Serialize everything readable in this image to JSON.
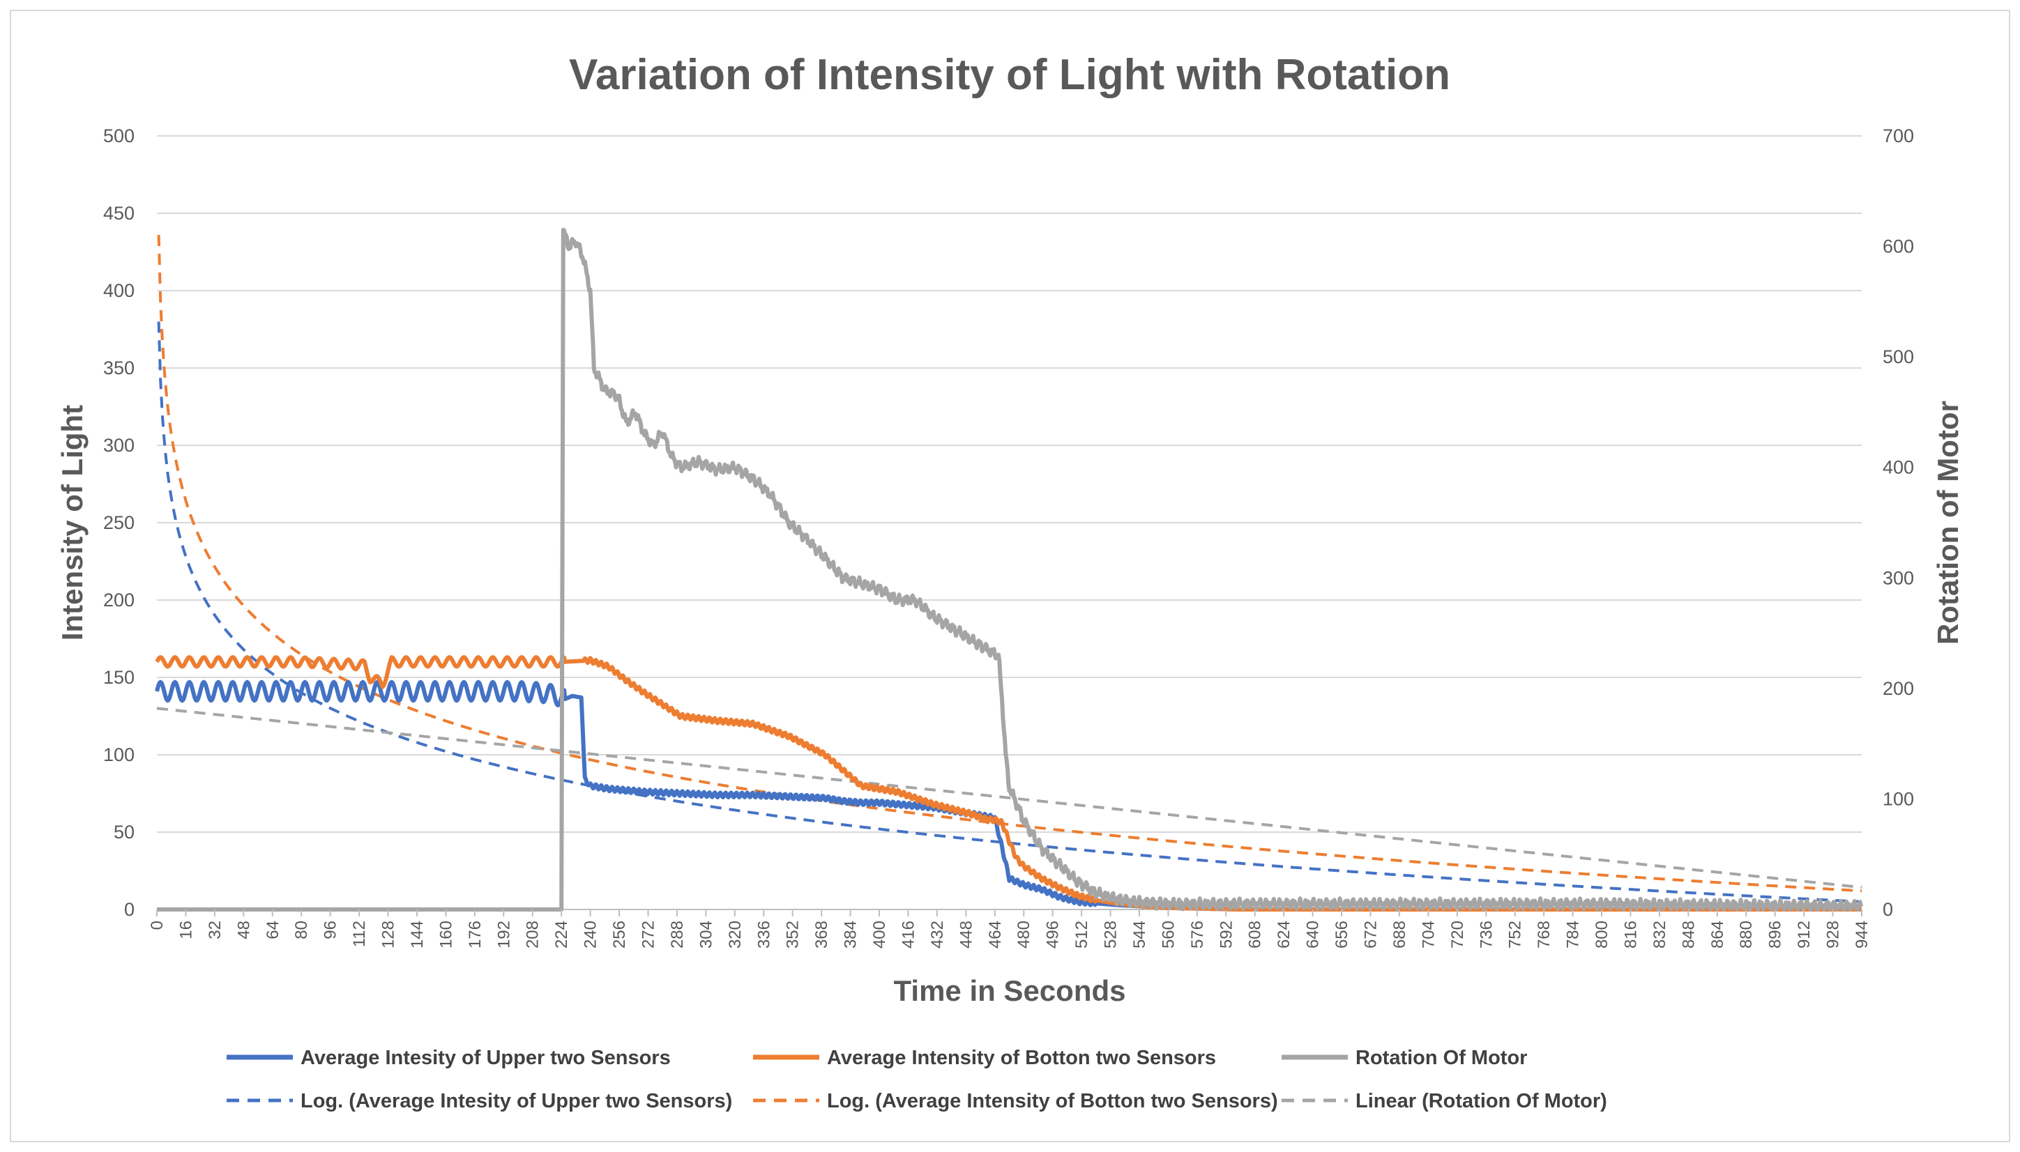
{
  "chart_data": {
    "type": "line",
    "title": "Variation of Intensity of Light with Rotation",
    "xlabel": "Time in Seconds",
    "ylabel": "Intensity of Light",
    "y2label": "Rotation of Motor",
    "xlim": [
      0,
      944
    ],
    "ylim": [
      0,
      500
    ],
    "y2lim": [
      0,
      700
    ],
    "x_ticks": [
      0,
      16,
      32,
      48,
      64,
      80,
      96,
      112,
      128,
      144,
      160,
      176,
      192,
      208,
      224,
      240,
      256,
      272,
      288,
      304,
      320,
      336,
      352,
      368,
      384,
      400,
      416,
      432,
      448,
      464,
      480,
      496,
      512,
      528,
      544,
      560,
      576,
      592,
      608,
      624,
      640,
      656,
      672,
      688,
      704,
      720,
      736,
      752,
      768,
      784,
      800,
      816,
      832,
      848,
      864,
      880,
      896,
      912,
      928,
      944
    ],
    "y_ticks": [
      0,
      50,
      100,
      150,
      200,
      250,
      300,
      350,
      400,
      450,
      500
    ],
    "y2_ticks": [
      0,
      100,
      200,
      300,
      400,
      500,
      600,
      700
    ],
    "grid": true,
    "legend_position": "bottom",
    "colors": {
      "upper": "#4472C4",
      "bottom": "#ED7D31",
      "motor": "#A5A5A5",
      "grid": "#d9d9d9",
      "text": "#595959"
    },
    "series": [
      {
        "name": "Average Intesity of Upper two Sensors",
        "axis": "left",
        "style": "solid",
        "color": "#4472C4",
        "x": [
          0,
          20,
          40,
          60,
          80,
          100,
          120,
          140,
          160,
          180,
          200,
          215,
          222,
          226,
          230,
          235,
          237,
          240,
          250,
          270,
          290,
          310,
          330,
          350,
          370,
          380,
          390,
          400,
          410,
          420,
          430,
          440,
          450,
          460,
          464,
          468,
          472,
          480,
          490,
          500,
          510,
          520,
          530,
          545,
          560,
          600,
          700,
          800,
          944
        ],
        "y": [
          141,
          141,
          141,
          141,
          141,
          141,
          141,
          141,
          141,
          141,
          141,
          140,
          138,
          136,
          138,
          137,
          84,
          80,
          78,
          76,
          75,
          74,
          74,
          73,
          72,
          70,
          69,
          69,
          68,
          67,
          66,
          64,
          62,
          60,
          59,
          40,
          20,
          16,
          13,
          8,
          5,
          4,
          3,
          2,
          1,
          0,
          0,
          0,
          0
        ],
        "oscillation_amplitude_until_x": [
          6,
          226
        ]
      },
      {
        "name": "Average Intensity of Botton two Sensors",
        "axis": "left",
        "style": "solid",
        "color": "#ED7D31",
        "x": [
          0,
          40,
          80,
          115,
          118,
          125,
          130,
          150,
          200,
          215,
          225,
          240,
          250,
          260,
          270,
          290,
          310,
          330,
          350,
          370,
          380,
          390,
          400,
          410,
          420,
          430,
          440,
          450,
          460,
          464,
          468,
          472,
          476,
          480,
          490,
          500,
          510,
          520,
          530,
          545,
          560,
          600,
          700,
          800,
          944
        ],
        "y": [
          160,
          160,
          160,
          158,
          150,
          146,
          160,
          160,
          160,
          160,
          160,
          161,
          157,
          148,
          140,
          125,
          122,
          120,
          112,
          100,
          90,
          80,
          78,
          76,
          72,
          68,
          65,
          62,
          58,
          58,
          56,
          44,
          33,
          28,
          20,
          14,
          9,
          6,
          4,
          2,
          1,
          0,
          0,
          0,
          0
        ],
        "oscillation_amplitude_until_x": [
          3,
          226
        ]
      },
      {
        "name": "Rotation Of Motor",
        "axis": "right",
        "style": "solid",
        "color": "#A5A5A5",
        "x": [
          0,
          223,
          224,
          225,
          228,
          232,
          236,
          240,
          242,
          248,
          255,
          260,
          265,
          270,
          275,
          280,
          285,
          290,
          300,
          310,
          320,
          330,
          340,
          350,
          360,
          370,
          380,
          390,
          400,
          410,
          420,
          430,
          440,
          450,
          460,
          466,
          468,
          470,
          472,
          475,
          480,
          490,
          500,
          510,
          520,
          530,
          540,
          550,
          560,
          600,
          700,
          800,
          944
        ],
        "y": [
          0,
          0,
          0,
          615,
          600,
          605,
          590,
          560,
          490,
          470,
          465,
          440,
          450,
          430,
          420,
          432,
          410,
          400,
          405,
          398,
          400,
          390,
          375,
          350,
          335,
          318,
          300,
          295,
          290,
          280,
          280,
          265,
          255,
          245,
          235,
          230,
          190,
          140,
          110,
          100,
          80,
          55,
          40,
          25,
          15,
          10,
          7,
          6,
          5,
          5,
          5,
          5,
          3
        ]
      },
      {
        "name": "Log. (Average Intesity of Upper two Sensors)",
        "axis": "left",
        "style": "dashed",
        "color": "#4472C4",
        "trend": "log",
        "x": [
          1,
          944
        ],
        "y": [
          380,
          5
        ]
      },
      {
        "name": "Log. (Average Intensity of Botton two Sensors)",
        "axis": "left",
        "style": "dashed",
        "color": "#ED7D31",
        "trend": "log",
        "x": [
          1,
          944
        ],
        "y": [
          436,
          12
        ]
      },
      {
        "name": "Linear (Rotation Of Motor)",
        "axis": "right",
        "style": "dashed",
        "color": "#A5A5A5",
        "trend": "linear",
        "x": [
          0,
          944
        ],
        "y": [
          182,
          20
        ]
      }
    ],
    "legend_rows": [
      [
        "Average Intesity of Upper two Sensors",
        "Average Intensity of Botton two Sensors",
        "Rotation Of Motor"
      ],
      [
        "Log. (Average Intesity of Upper two Sensors)",
        "Log. (Average Intensity of Botton two Sensors)",
        "Linear (Rotation Of Motor)"
      ]
    ]
  }
}
